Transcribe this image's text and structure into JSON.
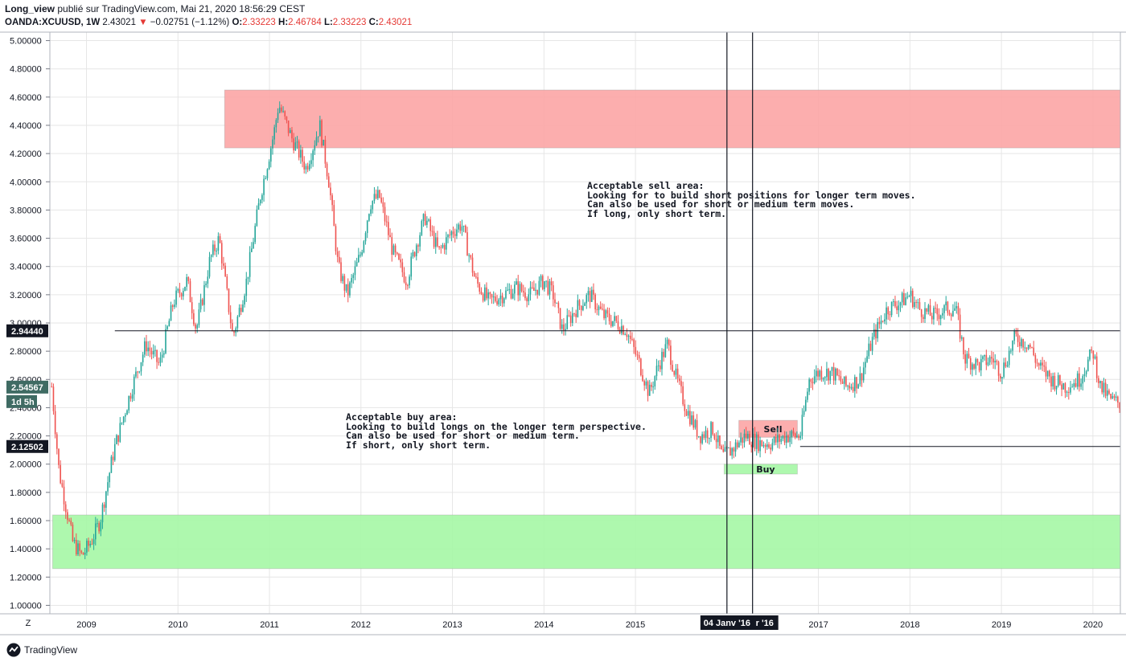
{
  "header": {
    "author": "Long_view",
    "published_on": "publié sur TradingView.com, Mai 21, 2020 18:56:29 CEST",
    "symbol": "OANDA:XCUUSD, 1W",
    "last": "2.43021",
    "arrow": "▼",
    "change": "−0.02751 (−1.12%)",
    "o_label": "O:",
    "o_value": "2.33223",
    "h_label": "H:",
    "h_value": "2.46784",
    "l_label": "L:",
    "l_value": "2.33223",
    "c_label": "C:",
    "c_value": "2.43021"
  },
  "chart_data": {
    "type": "candlestick",
    "y_axis": {
      "range": [
        0.94,
        5.06
      ],
      "ticks": [
        "1.00000",
        "1.20000",
        "1.40000",
        "1.60000",
        "1.80000",
        "2.00000",
        "2.20000",
        "2.40000",
        "2.60000",
        "2.80000",
        "3.00000",
        "3.20000",
        "3.40000",
        "3.60000",
        "3.80000",
        "4.00000",
        "4.20000",
        "4.40000",
        "4.60000",
        "4.80000",
        "5.00000"
      ],
      "tick_values": [
        1.0,
        1.2,
        1.4,
        1.6,
        1.8,
        2.0,
        2.2,
        2.4,
        2.6,
        2.8,
        3.0,
        3.2,
        3.4,
        3.6,
        3.8,
        4.0,
        4.2,
        4.4,
        4.6,
        4.8,
        5.0
      ]
    },
    "x_axis": {
      "range": [
        2008.6,
        2020.3
      ],
      "labels": [
        "2009",
        "2010",
        "2011",
        "2012",
        "2013",
        "2014",
        "2015",
        "2017",
        "2018",
        "2019",
        "2020"
      ],
      "label_values": [
        2009.0,
        2010.0,
        2011.0,
        2012.0,
        2013.0,
        2014.0,
        2015.0,
        2017.0,
        2018.0,
        2019.0,
        2020.0
      ]
    },
    "price_path": [
      [
        2008.62,
        2.55
      ],
      [
        2008.7,
        1.95
      ],
      [
        2008.85,
        1.45
      ],
      [
        2008.95,
        1.35
      ],
      [
        2009.05,
        1.45
      ],
      [
        2009.15,
        1.6
      ],
      [
        2009.3,
        2.1
      ],
      [
        2009.5,
        2.55
      ],
      [
        2009.65,
        2.85
      ],
      [
        2009.8,
        2.7
      ],
      [
        2009.95,
        3.15
      ],
      [
        2010.1,
        3.3
      ],
      [
        2010.2,
        2.95
      ],
      [
        2010.35,
        3.45
      ],
      [
        2010.45,
        3.6
      ],
      [
        2010.6,
        2.9
      ],
      [
        2010.75,
        3.3
      ],
      [
        2010.9,
        3.9
      ],
      [
        2011.05,
        4.35
      ],
      [
        2011.1,
        4.55
      ],
      [
        2011.25,
        4.3
      ],
      [
        2011.4,
        4.1
      ],
      [
        2011.55,
        4.4
      ],
      [
        2011.65,
        4.0
      ],
      [
        2011.75,
        3.4
      ],
      [
        2011.85,
        3.2
      ],
      [
        2012.0,
        3.5
      ],
      [
        2012.1,
        3.85
      ],
      [
        2012.2,
        3.9
      ],
      [
        2012.35,
        3.5
      ],
      [
        2012.5,
        3.3
      ],
      [
        2012.6,
        3.55
      ],
      [
        2012.7,
        3.75
      ],
      [
        2012.85,
        3.5
      ],
      [
        2013.0,
        3.65
      ],
      [
        2013.1,
        3.7
      ],
      [
        2013.25,
        3.3
      ],
      [
        2013.4,
        3.15
      ],
      [
        2013.55,
        3.2
      ],
      [
        2013.7,
        3.25
      ],
      [
        2013.85,
        3.2
      ],
      [
        2014.0,
        3.3
      ],
      [
        2014.1,
        3.2
      ],
      [
        2014.2,
        2.95
      ],
      [
        2014.35,
        3.1
      ],
      [
        2014.5,
        3.2
      ],
      [
        2014.65,
        3.05
      ],
      [
        2014.8,
        3.0
      ],
      [
        2014.9,
        2.95
      ],
      [
        2015.05,
        2.7
      ],
      [
        2015.15,
        2.5
      ],
      [
        2015.25,
        2.7
      ],
      [
        2015.35,
        2.85
      ],
      [
        2015.45,
        2.6
      ],
      [
        2015.55,
        2.4
      ],
      [
        2015.7,
        2.2
      ],
      [
        2015.85,
        2.25
      ],
      [
        2015.95,
        2.05
      ],
      [
        2016.05,
        2.1
      ],
      [
        2016.2,
        2.2
      ],
      [
        2016.35,
        2.15
      ],
      [
        2016.5,
        2.15
      ],
      [
        2016.65,
        2.2
      ],
      [
        2016.8,
        2.2
      ],
      [
        2016.9,
        2.6
      ],
      [
        2017.0,
        2.65
      ],
      [
        2017.15,
        2.65
      ],
      [
        2017.3,
        2.55
      ],
      [
        2017.45,
        2.6
      ],
      [
        2017.6,
        2.9
      ],
      [
        2017.75,
        3.1
      ],
      [
        2017.9,
        3.15
      ],
      [
        2018.0,
        3.2
      ],
      [
        2018.1,
        3.1
      ],
      [
        2018.25,
        3.05
      ],
      [
        2018.4,
        3.1
      ],
      [
        2018.5,
        3.1
      ],
      [
        2018.6,
        2.75
      ],
      [
        2018.75,
        2.7
      ],
      [
        2018.9,
        2.75
      ],
      [
        2019.0,
        2.65
      ],
      [
        2019.15,
        2.9
      ],
      [
        2019.3,
        2.85
      ],
      [
        2019.4,
        2.7
      ],
      [
        2019.55,
        2.6
      ],
      [
        2019.7,
        2.55
      ],
      [
        2019.85,
        2.6
      ],
      [
        2020.0,
        2.8
      ],
      [
        2020.08,
        2.55
      ],
      [
        2020.2,
        2.45
      ],
      [
        2020.3,
        2.43
      ]
    ],
    "colors": {
      "up": "#26a69a",
      "down": "#ef5350",
      "grid": "#e6e6e6"
    },
    "zones": [
      {
        "name": "sell-zone-major",
        "x0": 2010.51,
        "x1": 2020.3,
        "y0": 4.24,
        "y1": 4.65,
        "color": "#fca5a5"
      },
      {
        "name": "buy-zone-major",
        "x0": 2008.63,
        "x1": 2020.3,
        "y0": 1.26,
        "y1": 1.64,
        "color": "#a5f7a5"
      },
      {
        "name": "sell-zone-minor",
        "x0": 2016.13,
        "x1": 2016.77,
        "y0": 2.19,
        "y1": 2.31,
        "color": "#fca5a5",
        "label": "Sell"
      },
      {
        "name": "buy-zone-minor",
        "x0": 2015.97,
        "x1": 2016.77,
        "y0": 1.93,
        "y1": 2.0,
        "color": "#a5f7a5",
        "label": "Buy"
      }
    ],
    "hlines": [
      {
        "name": "level-2944",
        "x0": 2009.31,
        "x1": 2020.3,
        "y": 2.9444
      },
      {
        "name": "level-2125",
        "x0": 2016.8,
        "x1": 2020.3,
        "y": 2.12502
      }
    ],
    "vlines": [
      {
        "name": "marker-jan-2016",
        "x": 2016.0
      },
      {
        "name": "marker-mar-2016",
        "x": 2016.28
      }
    ],
    "price_labels": [
      {
        "text": "2.94440",
        "y": 2.9444,
        "color": "#131722"
      },
      {
        "text": "2.54567",
        "y": 2.54567,
        "color": "#3f6b63"
      },
      {
        "text": "2.12502",
        "y": 2.12502,
        "color": "#131722"
      }
    ],
    "countdown_label": "1d 5h",
    "date_labels": [
      "04 Janv '16",
      "r '16"
    ],
    "annotations": [
      {
        "name": "sell-area-note",
        "lines": [
          "Acceptable sell area:",
          "Looking for to build short positions for longer term moves.",
          "Can also be used for short or medium term moves.",
          "If long, only short term."
        ]
      },
      {
        "name": "buy-area-note",
        "lines": [
          "Acceptable buy area:",
          "Looking to build longs on the longer term perspective.",
          "Can also be used for short or medium term.",
          "If short, only short term."
        ]
      }
    ]
  },
  "corner_label": "Z",
  "footer": {
    "brand": "TradingView"
  }
}
